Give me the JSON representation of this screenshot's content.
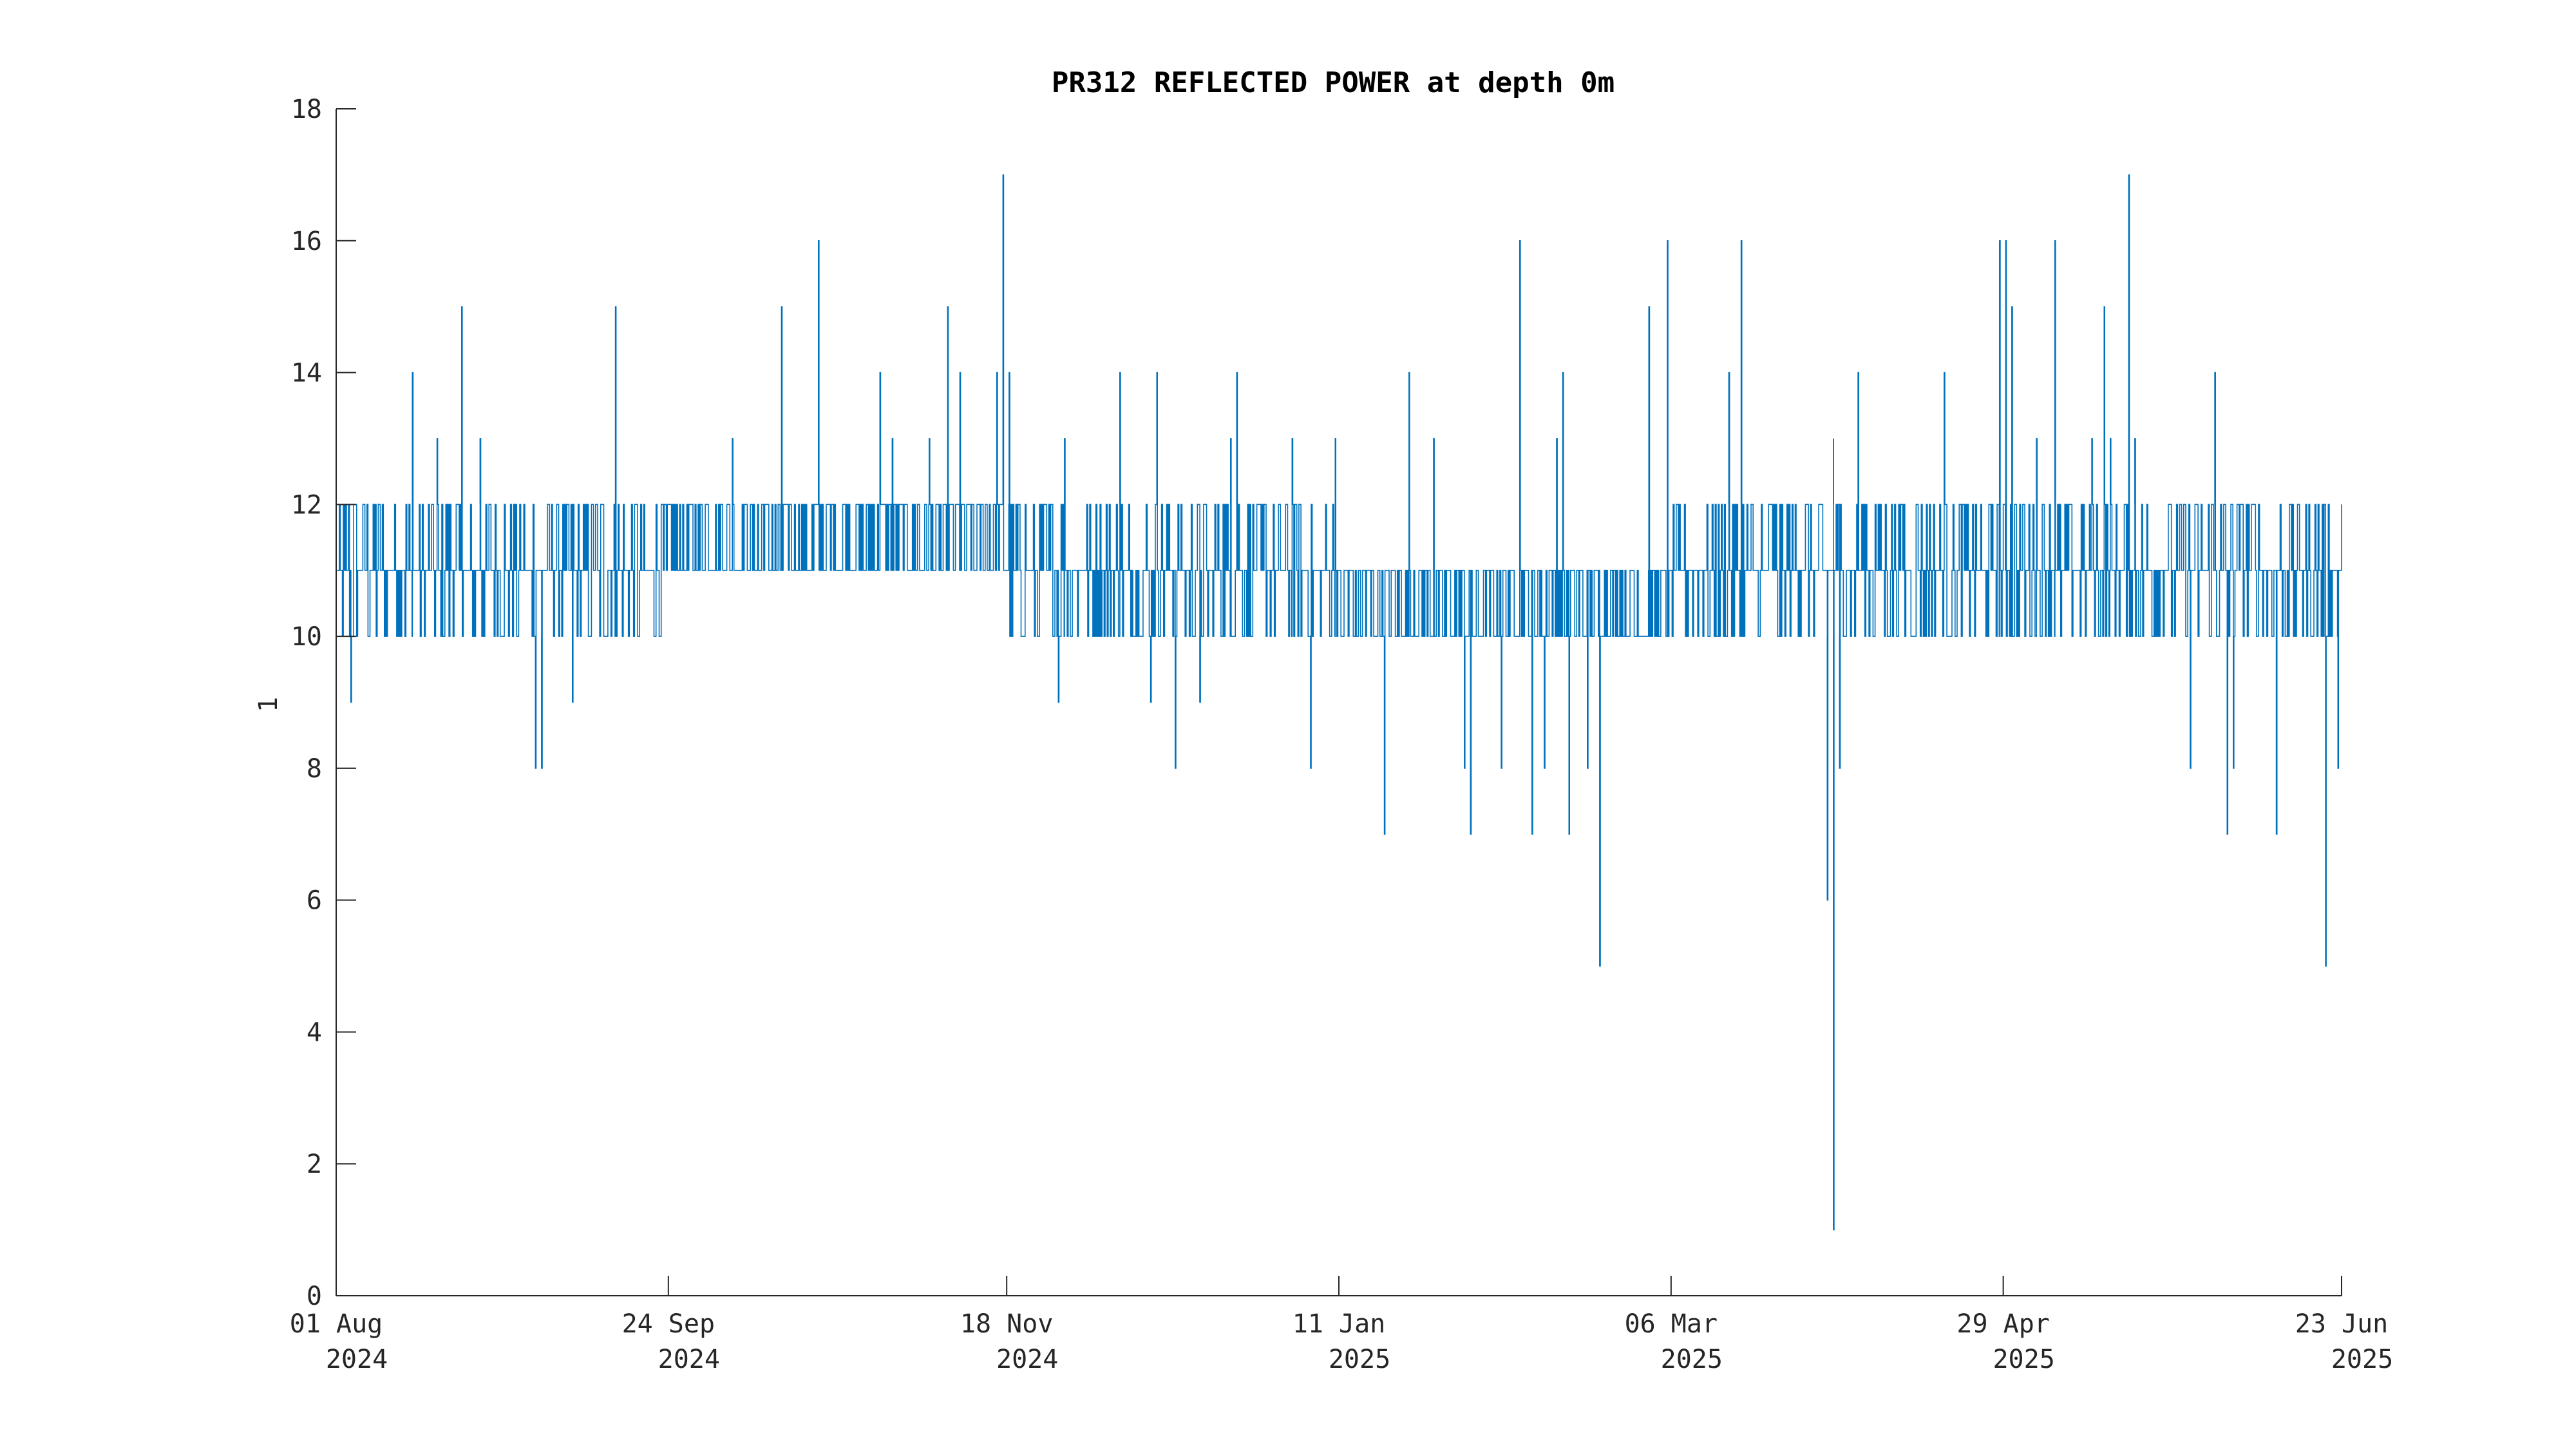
{
  "chart_data": {
    "type": "line",
    "title": "PR312 REFLECTED POWER at depth 0m",
    "xlabel": "",
    "ylabel": "1",
    "xlim": [
      "2024-08-01",
      "2025-06-23"
    ],
    "ylim": [
      0,
      18
    ],
    "y_ticks": [
      0,
      2,
      4,
      6,
      8,
      10,
      12,
      14,
      16,
      18
    ],
    "x_ticks": [
      {
        "date": "2024-08-01",
        "line1": "01 Aug",
        "line2": "2024"
      },
      {
        "date": "2024-09-24",
        "line1": "24 Sep",
        "line2": "2024"
      },
      {
        "date": "2024-11-18",
        "line1": "18 Nov",
        "line2": "2024"
      },
      {
        "date": "2025-01-11",
        "line1": "11 Jan",
        "line2": "2025"
      },
      {
        "date": "2025-03-06",
        "line1": "06 Mar",
        "line2": "2025"
      },
      {
        "date": "2025-04-29",
        "line1": "29 Apr",
        "line2": "2025"
      },
      {
        "date": "2025-06-23",
        "line1": "23 Jun",
        "line2": "2025"
      }
    ],
    "grid": false,
    "series": [
      {
        "color": "#0072bd",
        "typical_range": [
          {
            "from": "2024-08-01",
            "to": "2024-09-24",
            "low": 10,
            "high": 12
          },
          {
            "from": "2024-09-24",
            "to": "2024-11-18",
            "low": 11,
            "high": 12
          },
          {
            "from": "2024-11-18",
            "to": "2025-01-11",
            "low": 10,
            "high": 12
          },
          {
            "from": "2025-01-11",
            "to": "2025-03-06",
            "low": 10,
            "high": 11
          },
          {
            "from": "2025-03-06",
            "to": "2025-04-29",
            "low": 10,
            "high": 12
          },
          {
            "from": "2025-04-29",
            "to": "2025-06-23",
            "low": 10,
            "high": 12
          }
        ],
        "spikes_high": [
          {
            "x": "2024-08-13",
            "y": 14
          },
          {
            "x": "2024-08-17",
            "y": 13
          },
          {
            "x": "2024-08-21",
            "y": 15
          },
          {
            "x": "2024-08-24",
            "y": 13
          },
          {
            "x": "2024-09-15",
            "y": 15
          },
          {
            "x": "2024-10-04",
            "y": 13
          },
          {
            "x": "2024-10-12",
            "y": 15
          },
          {
            "x": "2024-10-18",
            "y": 16
          },
          {
            "x": "2024-10-28",
            "y": 14
          },
          {
            "x": "2024-10-30",
            "y": 13
          },
          {
            "x": "2024-11-05",
            "y": 13
          },
          {
            "x": "2024-11-08",
            "y": 15
          },
          {
            "x": "2024-11-10",
            "y": 14
          },
          {
            "x": "2024-11-16",
            "y": 14
          },
          {
            "x": "2024-11-17",
            "y": 17
          },
          {
            "x": "2024-11-18",
            "y": 14
          },
          {
            "x": "2024-11-27",
            "y": 13
          },
          {
            "x": "2024-12-06",
            "y": 14
          },
          {
            "x": "2024-12-12",
            "y": 14
          },
          {
            "x": "2024-12-24",
            "y": 13
          },
          {
            "x": "2024-12-25",
            "y": 14
          },
          {
            "x": "2025-01-03",
            "y": 13
          },
          {
            "x": "2025-01-10",
            "y": 13
          },
          {
            "x": "2025-01-22",
            "y": 14
          },
          {
            "x": "2025-01-26",
            "y": 13
          },
          {
            "x": "2025-02-09",
            "y": 16
          },
          {
            "x": "2025-02-15",
            "y": 13
          },
          {
            "x": "2025-02-16",
            "y": 14
          },
          {
            "x": "2025-03-02",
            "y": 15
          },
          {
            "x": "2025-03-05",
            "y": 16
          },
          {
            "x": "2025-03-15",
            "y": 14
          },
          {
            "x": "2025-03-17",
            "y": 16
          },
          {
            "x": "2025-04-01",
            "y": 13
          },
          {
            "x": "2025-04-05",
            "y": 14
          },
          {
            "x": "2025-04-19",
            "y": 14
          },
          {
            "x": "2025-04-28",
            "y": 16
          },
          {
            "x": "2025-04-29",
            "y": 16
          },
          {
            "x": "2025-04-30",
            "y": 15
          },
          {
            "x": "2025-05-04",
            "y": 13
          },
          {
            "x": "2025-05-07",
            "y": 16
          },
          {
            "x": "2025-05-13",
            "y": 13
          },
          {
            "x": "2025-05-15",
            "y": 15
          },
          {
            "x": "2025-05-16",
            "y": 13
          },
          {
            "x": "2025-05-19",
            "y": 17
          },
          {
            "x": "2025-05-20",
            "y": 13
          },
          {
            "x": "2025-06-02",
            "y": 14
          }
        ],
        "spikes_low": [
          {
            "x": "2024-08-03",
            "y": 9
          },
          {
            "x": "2024-09-02",
            "y": 8
          },
          {
            "x": "2024-09-03",
            "y": 8
          },
          {
            "x": "2024-09-08",
            "y": 9
          },
          {
            "x": "2024-11-26",
            "y": 9
          },
          {
            "x": "2024-12-11",
            "y": 9
          },
          {
            "x": "2024-12-15",
            "y": 8
          },
          {
            "x": "2024-12-19",
            "y": 9
          },
          {
            "x": "2025-01-06",
            "y": 8
          },
          {
            "x": "2025-01-18",
            "y": 7
          },
          {
            "x": "2025-01-31",
            "y": 8
          },
          {
            "x": "2025-02-01",
            "y": 7
          },
          {
            "x": "2025-02-06",
            "y": 8
          },
          {
            "x": "2025-02-11",
            "y": 7
          },
          {
            "x": "2025-02-13",
            "y": 8
          },
          {
            "x": "2025-02-17",
            "y": 7
          },
          {
            "x": "2025-02-20",
            "y": 8
          },
          {
            "x": "2025-02-22",
            "y": 5
          },
          {
            "x": "2025-03-31",
            "y": 7
          },
          {
            "x": "2025-03-31",
            "y": 6
          },
          {
            "x": "2025-04-01",
            "y": 1
          },
          {
            "x": "2025-04-02",
            "y": 8
          },
          {
            "x": "2025-05-29",
            "y": 8
          },
          {
            "x": "2025-06-04",
            "y": 7
          },
          {
            "x": "2025-06-05",
            "y": 8
          },
          {
            "x": "2025-06-12",
            "y": 7
          },
          {
            "x": "2025-06-20",
            "y": 5
          },
          {
            "x": "2025-06-22",
            "y": 8
          }
        ]
      }
    ]
  }
}
